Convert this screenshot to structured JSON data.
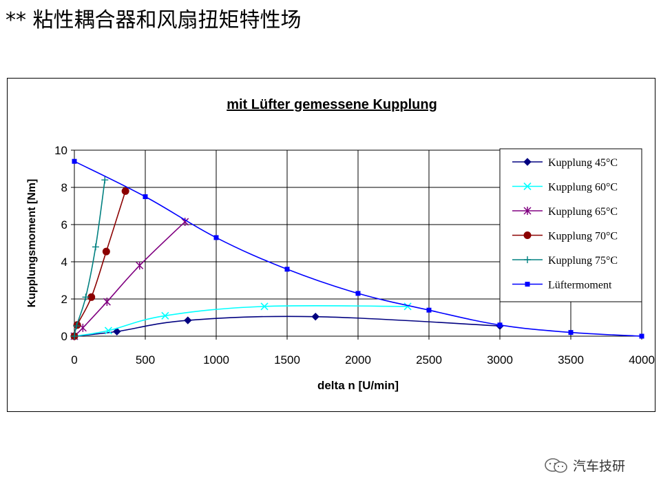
{
  "slide": {
    "title": "** 粘性耦合器和风扇扭矩特性场"
  },
  "watermark": {
    "text": "汽车技研",
    "icon": "wechat-icon"
  },
  "chart_data": {
    "type": "line",
    "title": "mit Lüfter gemessene Kupplung",
    "xlabel": "delta n [U/min]",
    "ylabel": "Kupplungsmoment [Nm]",
    "xlim": [
      0,
      4000
    ],
    "ylim": [
      0,
      10
    ],
    "xticks": [
      0,
      500,
      1000,
      1500,
      2000,
      2500,
      3000,
      3500,
      4000
    ],
    "yticks": [
      0,
      2,
      4,
      6,
      8,
      10
    ],
    "grid": true,
    "legend_position": "top-right",
    "series": [
      {
        "name": "Kupplung 45°C",
        "color": "#000080",
        "marker": "diamond",
        "x": [
          0,
          300,
          800,
          1700,
          3000
        ],
        "y": [
          0,
          0.25,
          0.85,
          1.05,
          0.55
        ]
      },
      {
        "name": "Kupplung 60°C",
        "color": "#00ffff",
        "marker": "x",
        "x": [
          0,
          240,
          640,
          1340,
          2350
        ],
        "y": [
          0,
          0.3,
          1.1,
          1.6,
          1.6
        ]
      },
      {
        "name": "Kupplung 65°C",
        "color": "#800080",
        "marker": "star",
        "x": [
          0,
          60,
          230,
          460,
          780
        ],
        "y": [
          0,
          0.45,
          1.85,
          3.8,
          6.15
        ]
      },
      {
        "name": "Kupplung 70°C",
        "color": "#8b0000",
        "marker": "circle",
        "x": [
          0,
          20,
          120,
          225,
          360
        ],
        "y": [
          0,
          0.6,
          2.1,
          4.55,
          7.8
        ]
      },
      {
        "name": "Kupplung 75°C",
        "color": "#008080",
        "marker": "plus",
        "x": [
          0,
          15,
          80,
          150,
          215
        ],
        "y": [
          0,
          0.55,
          2.1,
          4.8,
          8.4
        ]
      },
      {
        "name": "Lüftermoment",
        "color": "#0000ff",
        "marker": "square",
        "x": [
          0,
          500,
          1000,
          1500,
          2000,
          2500,
          3000,
          3500,
          4000
        ],
        "y": [
          9.4,
          7.5,
          5.3,
          3.6,
          2.3,
          1.4,
          0.6,
          0.2,
          0.0
        ]
      }
    ]
  }
}
